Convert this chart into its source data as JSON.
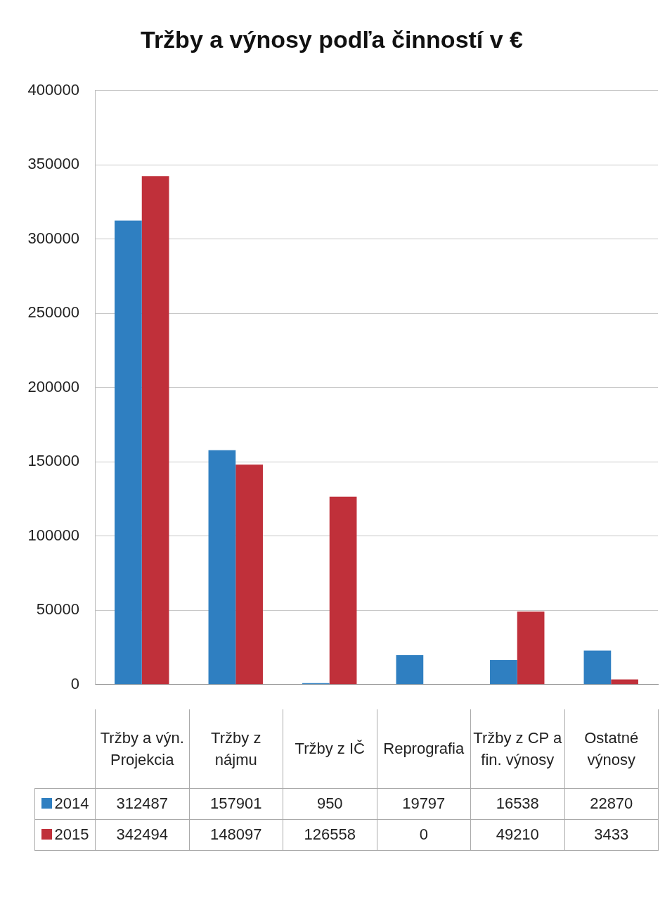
{
  "chart_data": {
    "type": "bar",
    "title": "Tržby a výnosy podľa činností v €",
    "categories": [
      "Tržby a výn. Projekcia",
      "Tržby z nájmu",
      "Tržby z IČ",
      "Reprografia",
      "Tržby z CP a fin. výnosy",
      "Ostatné výnosy"
    ],
    "series": [
      {
        "name": "2014",
        "color": "#2f7fc1",
        "values": [
          312487,
          157901,
          950,
          19797,
          16538,
          22870
        ]
      },
      {
        "name": "2015",
        "color": "#c0303a",
        "values": [
          342494,
          148097,
          126558,
          0,
          49210,
          3433
        ]
      }
    ],
    "ylim": [
      0,
      400000
    ],
    "yticks": [
      0,
      50000,
      100000,
      150000,
      200000,
      250000,
      300000,
      350000,
      400000
    ],
    "grid": "y",
    "legend": "bottom",
    "data_labels": true
  }
}
